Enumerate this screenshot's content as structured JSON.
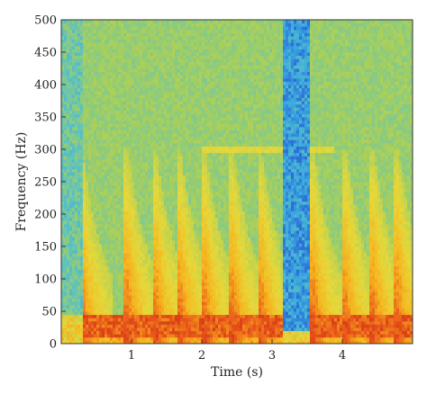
{
  "chart_data": {
    "type": "heatmap",
    "title": "",
    "xlabel": "Time (s)",
    "ylabel": "Frequency (Hz)",
    "xlim": [
      0,
      5.0
    ],
    "ylim": [
      0,
      500
    ],
    "x_ticks": [
      1,
      2,
      3,
      4
    ],
    "y_ticks": [
      0,
      50,
      100,
      150,
      200,
      250,
      300,
      350,
      400,
      450,
      500
    ],
    "grid": false,
    "legend": "none",
    "colormap": [
      "#3a2a9a",
      "#2d6fd6",
      "#38a6e0",
      "#5cc2c2",
      "#a6cf5c",
      "#e6d83a",
      "#f6b21e",
      "#e8541a",
      "#b81a10"
    ],
    "pulse_onsets_s": [
      0.3,
      0.95,
      1.35,
      1.7,
      2.05,
      2.45,
      2.85,
      3.6,
      4.05,
      4.45,
      4.8
    ],
    "low_energy_interval_s": [
      3.15,
      3.55
    ],
    "low_band_hz": [
      10,
      45
    ],
    "harmonic_hz": 300
  }
}
